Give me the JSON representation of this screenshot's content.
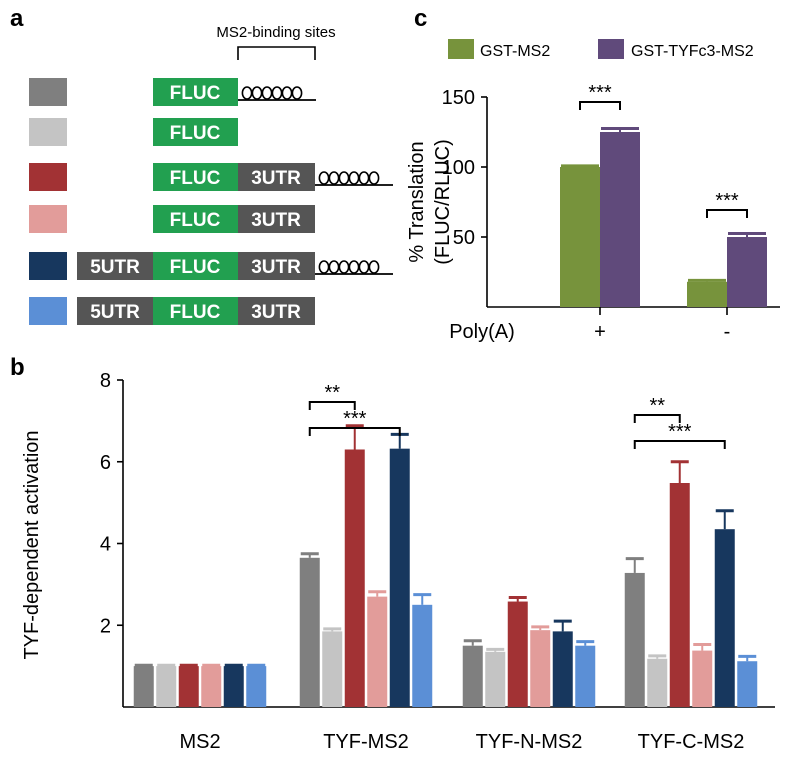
{
  "panel_labels": {
    "a": "a",
    "b": "b",
    "c": "c"
  },
  "panel_a": {
    "ms2_label": "MS2-binding sites",
    "box_labels": {
      "fluc": "FLUC",
      "utr3": "3UTR",
      "utr5": "5UTR"
    },
    "colors": {
      "fluc": "#22a050",
      "utr": "#555555"
    },
    "constructs": [
      {
        "swatch": "#7f7f7f",
        "utr5": false,
        "utr3": false,
        "ms2": true
      },
      {
        "swatch": "#c4c4c4",
        "utr5": false,
        "utr3": false,
        "ms2": false
      },
      {
        "swatch": "#a23234",
        "utr5": false,
        "utr3": true,
        "ms2": true
      },
      {
        "swatch": "#e29c9a",
        "utr5": false,
        "utr3": true,
        "ms2": false
      },
      {
        "swatch": "#17375e",
        "utr5": true,
        "utr3": true,
        "ms2": true
      },
      {
        "swatch": "#5b8fd6",
        "utr5": true,
        "utr3": true,
        "ms2": false
      }
    ]
  },
  "chart_data": [
    {
      "id": "b",
      "type": "bar",
      "ylabel": "TYF-dependent activation",
      "xlabel": "",
      "ylim": [
        0,
        8
      ],
      "yticks": [
        2,
        4,
        6,
        8
      ],
      "categories": [
        "MS2",
        "TYF-MS2",
        "TYF-N-MS2",
        "TYF-C-MS2"
      ],
      "series": [
        {
          "name": "FLUC-MS2",
          "color": "#7f7f7f",
          "values": [
            1.0,
            3.65,
            1.5,
            3.28
          ],
          "errors": [
            0.02,
            0.1,
            0.12,
            0.35
          ]
        },
        {
          "name": "FLUC",
          "color": "#c4c4c4",
          "values": [
            1.0,
            1.85,
            1.35,
            1.18
          ],
          "errors": [
            0.02,
            0.06,
            0.06,
            0.07
          ]
        },
        {
          "name": "FLUC-3UTR-MS2",
          "color": "#a23234",
          "values": [
            1.0,
            6.3,
            2.58,
            5.48
          ],
          "errors": [
            0.02,
            0.58,
            0.1,
            0.52
          ]
        },
        {
          "name": "FLUC-3UTR",
          "color": "#e29c9a",
          "values": [
            1.0,
            2.7,
            1.88,
            1.38
          ],
          "errors": [
            0.02,
            0.12,
            0.08,
            0.15
          ]
        },
        {
          "name": "5UTR-FLUC-3UTR-MS2",
          "color": "#17375e",
          "values": [
            1.0,
            6.32,
            1.85,
            4.35
          ],
          "errors": [
            0.02,
            0.35,
            0.25,
            0.45
          ]
        },
        {
          "name": "5UTR-FLUC-3UTR",
          "color": "#5b8fd6",
          "values": [
            1.0,
            2.5,
            1.5,
            1.12
          ],
          "errors": [
            0.02,
            0.25,
            0.1,
            0.12
          ]
        }
      ],
      "significance": [
        {
          "category": 1,
          "from": 0,
          "to": 2,
          "label": "**"
        },
        {
          "category": 1,
          "from": 0,
          "to": 4,
          "label": "***"
        },
        {
          "category": 3,
          "from": 0,
          "to": 2,
          "label": "**"
        },
        {
          "category": 3,
          "from": 0,
          "to": 4,
          "label": "***"
        }
      ]
    },
    {
      "id": "c",
      "type": "bar",
      "ylabel": "% Translation",
      "ylabel2": "(FLUC/RLUC)",
      "xlabel": "Poly(A)",
      "ylim": [
        0,
        150
      ],
      "yticks": [
        50,
        100,
        150
      ],
      "categories": [
        "+",
        "-"
      ],
      "series": [
        {
          "name": "GST-MS2",
          "color": "#77933c",
          "values": [
            100,
            18
          ],
          "errors": [
            0.8,
            1.0
          ]
        },
        {
          "name": "GST-TYFc3-MS2",
          "color": "#604a7b",
          "values": [
            125,
            50
          ],
          "errors": [
            2.5,
            2.5
          ]
        }
      ],
      "significance": [
        {
          "category": 0,
          "from": 0,
          "to": 1,
          "label": "***"
        },
        {
          "category": 1,
          "from": 0,
          "to": 1,
          "label": "***"
        }
      ]
    }
  ]
}
